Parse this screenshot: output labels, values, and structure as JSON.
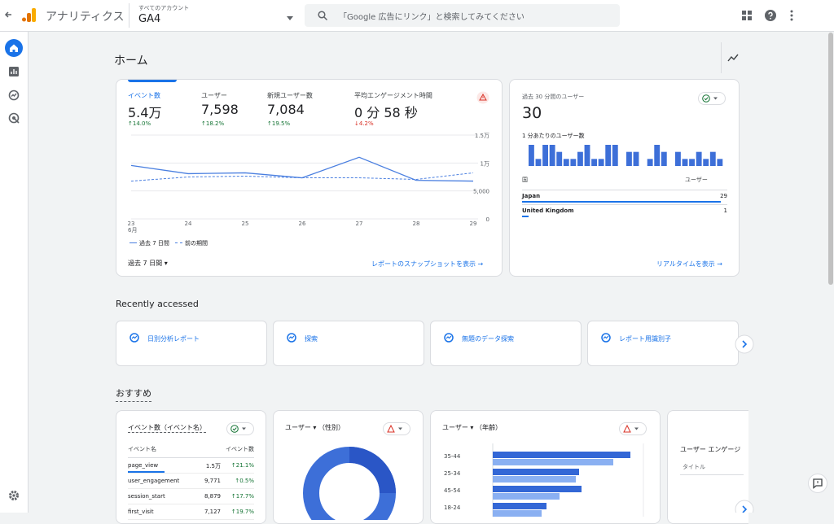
{
  "header": {
    "app_name": "アナリティクス",
    "account_label": "すべてのアカウント",
    "property": "GA4",
    "search_placeholder": "「Google 広告にリンク」と検索してみてください"
  },
  "page_title": "ホーム",
  "overview": {
    "metrics": [
      {
        "label": "イベント数",
        "value": "5.4万",
        "change": "14.0%",
        "trend": "up"
      },
      {
        "label": "ユーザー",
        "value": "7,598",
        "change": "18.2%",
        "trend": "up"
      },
      {
        "label": "新規ユーザー数",
        "value": "7,084",
        "change": "19.5%",
        "trend": "up"
      },
      {
        "label": "平均エンゲージメント時間",
        "value": "0 分 58 秒",
        "change": "4.2%",
        "trend": "down"
      }
    ],
    "chart_data": {
      "type": "line",
      "categories": [
        "23",
        "24",
        "25",
        "26",
        "27",
        "28",
        "29"
      ],
      "month_label": "6月",
      "series": [
        {
          "name": "過去 7 日間",
          "color": "#4a7fe0",
          "dashed": false,
          "values": [
            9560,
            8090,
            8240,
            7350,
            11030,
            6900,
            6760
          ]
        },
        {
          "name": "前の期間",
          "color": "#4a7fe0",
          "dashed": true,
          "values": [
            6760,
            7500,
            7650,
            7350,
            7350,
            7060,
            8240
          ]
        }
      ],
      "ylim": [
        0,
        15000
      ],
      "yticks": [
        0,
        {
          "value": 5000,
          "label": "5,000"
        },
        {
          "value": 10000,
          "label": "1万"
        },
        {
          "value": 15000,
          "label": "1.5万"
        }
      ],
      "grid": true
    },
    "date_range": "過去 7 日間",
    "link": "レポートのスナップショットを表示"
  },
  "realtime": {
    "title": "過去 30 分間のユーザー",
    "value": "30",
    "subtitle": "1 分あたりのユーザー数",
    "chart_data": {
      "type": "bar",
      "color": "#3d6fd8",
      "ylim": [
        0,
        3
      ],
      "values": [
        3,
        1,
        3,
        3,
        2,
        1,
        1,
        2,
        3,
        1,
        1,
        3,
        3,
        0,
        2,
        2,
        0,
        1,
        3,
        2,
        0,
        2,
        1,
        1,
        2,
        1,
        2,
        1
      ]
    },
    "table": {
      "columns": [
        "国",
        "ユーザー"
      ],
      "rows": [
        [
          "Japan",
          "29"
        ],
        [
          "United Kingdom",
          "1"
        ]
      ]
    },
    "link": "リアルタイムを表示"
  },
  "recently_accessed": {
    "title": "Recently accessed",
    "items": [
      "日別分析レポート",
      "探索",
      "無題のデータ探索",
      "レポート用識別子"
    ]
  },
  "recommended": {
    "title": "おすすめ",
    "events_card": {
      "title": "イベント数（イベント名）",
      "columns": [
        "イベント名",
        "イベント数"
      ],
      "rows": [
        {
          "name": "page_view",
          "count": "1.5万",
          "change": "21.1%",
          "trend": "up"
        },
        {
          "name": "user_engagement",
          "count": "9,771",
          "change": "0.5%",
          "trend": "up"
        },
        {
          "name": "session_start",
          "count": "8,879",
          "change": "17.7%",
          "trend": "up"
        },
        {
          "name": "first_visit",
          "count": "7,127",
          "change": "19.7%",
          "trend": "up"
        }
      ]
    },
    "gender_card": {
      "metric": "ユーザー",
      "dimension": "（性別）"
    },
    "age_card": {
      "metric": "ユーザー",
      "dimension": "（年齢）",
      "chart_data": {
        "type": "hbar",
        "categories": [
          "35-44",
          "25-34",
          "45-54",
          "18-24"
        ],
        "xlim": [
          0,
          185
        ],
        "series": [
          {
            "color": "#3367d6",
            "values": [
              169,
              106,
              109,
              66
            ]
          },
          {
            "color": "#8ab0f2",
            "values": [
              148,
              102,
              82,
              60
            ]
          }
        ]
      }
    },
    "engagement_card": {
      "title": "ユーザー エンゲージ",
      "column": "タイトル"
    }
  }
}
